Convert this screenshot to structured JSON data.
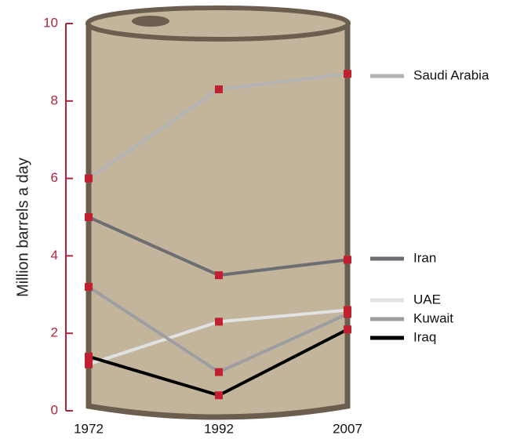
{
  "chart_data": {
    "type": "line",
    "y_label": "Million barrels a day",
    "categories": [
      "1972",
      "1992",
      "2007"
    ],
    "series": [
      {
        "name": "Saudi Arabia",
        "color": "#b3b3b3",
        "values": [
          6.0,
          8.3,
          8.7
        ]
      },
      {
        "name": "Iran",
        "color": "#6d6e71",
        "values": [
          5.0,
          3.5,
          3.9
        ]
      },
      {
        "name": "UAE",
        "color": "#e2e2e2",
        "values": [
          1.2,
          2.3,
          2.6
        ]
      },
      {
        "name": "Kuwait",
        "color": "#9d9ea1",
        "values": [
          3.2,
          1.0,
          2.5
        ]
      },
      {
        "name": "Iraq",
        "color": "#000000",
        "values": [
          1.4,
          0.4,
          2.1
        ]
      }
    ],
    "marker_color": "#c0202f",
    "axis_color": "#b0243a",
    "ylim": [
      0,
      10
    ],
    "yticks": [
      0,
      2,
      4,
      6,
      8,
      10
    ]
  }
}
